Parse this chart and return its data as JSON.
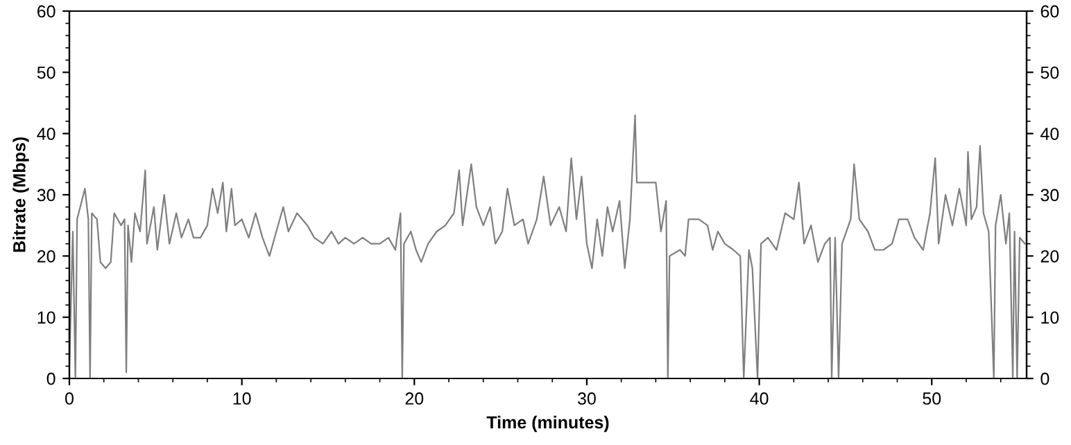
{
  "chart_data": {
    "type": "line",
    "xlabel": "Time (minutes)",
    "ylabel": "Bitrate (Mbps)",
    "xlim": [
      0,
      55.5
    ],
    "xticks": [
      0,
      10,
      20,
      30,
      40,
      50
    ],
    "ylim": [
      0,
      60
    ],
    "yticks": [
      0,
      10,
      20,
      30,
      40,
      50,
      60
    ],
    "y2lim": [
      0,
      60
    ],
    "y2ticks": [
      0,
      10,
      20,
      30,
      40,
      50,
      60
    ],
    "grid": false,
    "marker": "none",
    "line_style": "solid",
    "series": [
      {
        "color": "#7f7f7f",
        "x": [
          0.0,
          0.2,
          0.35,
          0.45,
          0.9,
          1.1,
          1.2,
          1.3,
          1.6,
          1.8,
          2.1,
          2.4,
          2.6,
          3.0,
          3.2,
          3.3,
          3.4,
          3.6,
          3.8,
          4.1,
          4.4,
          4.5,
          4.9,
          5.1,
          5.5,
          5.8,
          6.2,
          6.5,
          6.9,
          7.2,
          7.6,
          8.0,
          8.3,
          8.6,
          8.9,
          9.1,
          9.4,
          9.6,
          10.0,
          10.4,
          10.8,
          11.2,
          11.6,
          12.0,
          12.4,
          12.7,
          13.2,
          13.8,
          14.2,
          14.7,
          15.2,
          15.6,
          16.0,
          16.5,
          17.0,
          17.5,
          18.0,
          18.5,
          18.9,
          19.2,
          19.3,
          19.4,
          19.8,
          20.1,
          20.4,
          20.8,
          21.3,
          21.8,
          22.3,
          22.6,
          22.8,
          23.3,
          23.6,
          24.0,
          24.4,
          24.7,
          25.1,
          25.4,
          25.8,
          26.3,
          26.6,
          27.1,
          27.5,
          27.9,
          28.4,
          28.8,
          29.1,
          29.4,
          29.7,
          30.0,
          30.3,
          30.6,
          30.9,
          31.2,
          31.5,
          31.9,
          32.2,
          32.5,
          32.8,
          32.9,
          33.5,
          34.0,
          34.3,
          34.6,
          34.7,
          34.8,
          35.4,
          35.7,
          35.9,
          36.5,
          37.0,
          37.3,
          37.6,
          38.0,
          38.5,
          38.9,
          39.1,
          39.4,
          39.6,
          39.9,
          40.1,
          40.5,
          41.0,
          41.5,
          42.0,
          42.3,
          42.6,
          43.0,
          43.4,
          43.8,
          44.1,
          44.2,
          44.4,
          44.6,
          44.8,
          45.3,
          45.5,
          45.8,
          46.3,
          46.7,
          47.2,
          47.7,
          48.1,
          48.6,
          49.0,
          49.5,
          49.9,
          50.2,
          50.4,
          50.8,
          51.2,
          51.6,
          52.0,
          52.1,
          52.3,
          52.6,
          52.8,
          53.0,
          53.3,
          53.6,
          53.7,
          54.0,
          54.3,
          54.5,
          54.7,
          54.8,
          54.95,
          55.1,
          55.4
        ],
        "values": [
          2,
          24,
          0,
          26,
          31,
          26,
          0,
          27,
          26,
          19,
          18,
          19,
          27,
          25,
          26,
          1,
          25,
          19,
          27,
          24,
          34,
          22,
          28,
          21,
          30,
          22,
          27,
          23,
          26,
          23,
          23,
          25,
          31,
          27,
          32,
          24,
          31,
          25,
          26,
          23,
          27,
          23,
          20,
          24,
          28,
          24,
          27,
          25,
          23,
          22,
          24,
          22,
          23,
          22,
          23,
          22,
          22,
          23,
          21,
          27,
          0,
          22,
          24,
          21,
          19,
          22,
          24,
          25,
          27,
          34,
          25,
          35,
          28,
          25,
          28,
          22,
          24,
          31,
          25,
          26,
          22,
          26,
          33,
          25,
          28,
          24,
          36,
          26,
          33,
          22,
          18,
          26,
          20,
          28,
          24,
          29,
          18,
          26,
          43,
          32,
          32,
          32,
          24,
          29,
          0,
          20,
          21,
          20,
          26,
          26,
          25,
          21,
          24,
          22,
          21,
          20,
          0,
          21,
          18,
          0,
          22,
          23,
          21,
          27,
          26,
          32,
          22,
          25,
          19,
          22,
          23,
          0,
          23,
          0,
          22,
          26,
          35,
          26,
          24,
          21,
          21,
          22,
          26,
          26,
          23,
          21,
          27,
          36,
          22,
          30,
          25,
          31,
          25,
          37,
          26,
          28,
          38,
          27,
          24,
          0,
          25,
          30,
          22,
          27,
          0,
          24,
          0,
          23,
          22
        ]
      }
    ]
  }
}
